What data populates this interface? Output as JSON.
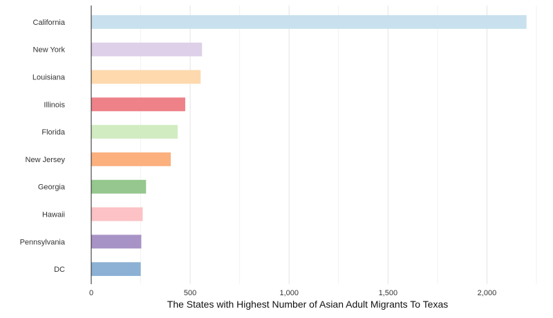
{
  "chart_data": {
    "type": "bar",
    "orientation": "horizontal",
    "title": "",
    "xlabel": "The States with Highest Number of Asian Adult Migrants To Texas",
    "ylabel": "",
    "categories": [
      "California",
      "New York",
      "Louisiana",
      "Illinois",
      "Florida",
      "New Jersey",
      "Georgia",
      "Hawaii",
      "Pennsylvania",
      "DC"
    ],
    "values": [
      2200,
      560,
      553,
      475,
      437,
      402,
      277,
      260,
      253,
      250
    ],
    "colors": [
      "#c9e1ee",
      "#ddd0e8",
      "#fdd9ad",
      "#ef8189",
      "#d2ecc2",
      "#fcb07e",
      "#95c78e",
      "#fcc2c5",
      "#a893c6",
      "#8cb1d4"
    ],
    "xlim": [
      0,
      2250
    ],
    "xticks": [
      0,
      500,
      1000,
      1500,
      2000
    ],
    "xtick_labels": [
      "0",
      "500",
      "1,000",
      "1,500",
      "2,000"
    ],
    "grid": true,
    "legend": "none"
  }
}
